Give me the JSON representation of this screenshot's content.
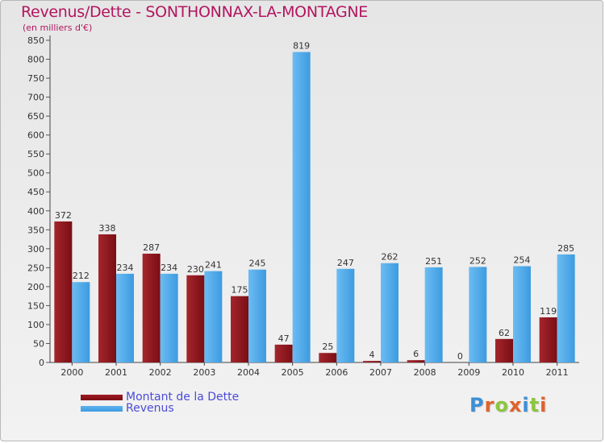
{
  "title": "Revenus/Dette - SONTHONNAX-LA-MONTAGNE",
  "subtitle": "(en milliers d'€)",
  "logo_text": "Proxiti",
  "colors": {
    "dette": "#7a0e14",
    "revenus": "#3d9be0",
    "title": "#b3155f",
    "legend_text": "#4b4bd6"
  },
  "chart_data": {
    "type": "bar",
    "title": "Revenus/Dette - SONTHONNAX-LA-MONTAGNE",
    "ylabel": "(en milliers d'€)",
    "xlabel": "",
    "ylim": [
      0,
      850
    ],
    "ytick_step": 50,
    "grid": false,
    "legend_position": "bottom-left",
    "categories": [
      "2000",
      "2001",
      "2002",
      "2003",
      "2004",
      "2005",
      "2006",
      "2007",
      "2008",
      "2009",
      "2010",
      "2011"
    ],
    "series": [
      {
        "name": "Montant de la Dette",
        "values": [
          372,
          338,
          287,
          230,
          175,
          47,
          25,
          4,
          6,
          0,
          62,
          119
        ]
      },
      {
        "name": "Revenus",
        "values": [
          212,
          234,
          234,
          241,
          245,
          819,
          247,
          262,
          251,
          252,
          254,
          285
        ]
      }
    ]
  }
}
